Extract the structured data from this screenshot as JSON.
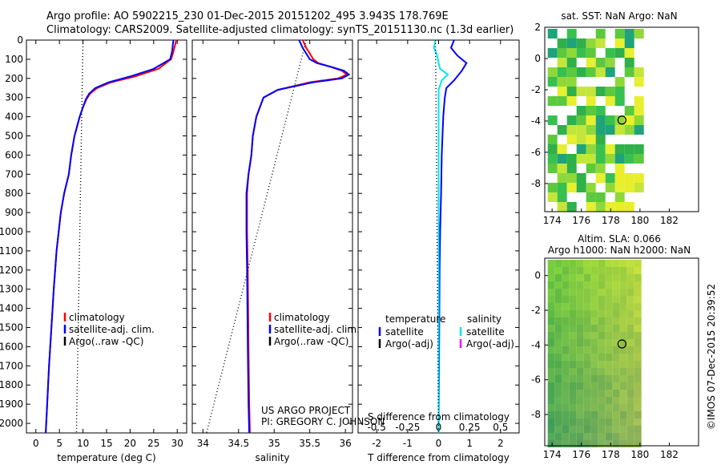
{
  "header": {
    "line1": "Argo profile: AO 5902215_230 01-Dec-2015 20151202_495 3.943S 178.769E",
    "line2": "Climatology: CARS2009. Satellite-adjusted climatology: synTS_20151130.nc (1.3d earlier)"
  },
  "colors": {
    "climatology": "#ff0000",
    "satellite": "#0000ff",
    "argo": "#000000",
    "satellite_s": "#00e5ee",
    "argo_s": "#ff00ff"
  },
  "chart_data": [
    {
      "id": "temperature",
      "type": "line",
      "xlabel": "temperature (deg C)",
      "ylabel": "",
      "xlim": [
        -2,
        32
      ],
      "ylim": [
        2050,
        0
      ],
      "xticks": [
        "0",
        "5",
        "10",
        "15",
        "20",
        "25",
        "30"
      ],
      "xtick_values": [
        0,
        5,
        10,
        15,
        20,
        25,
        30
      ],
      "yticks": [
        "0",
        "100",
        "200",
        "300",
        "400",
        "500",
        "600",
        "700",
        "800",
        "900",
        "1000",
        "1100",
        "1200",
        "1300",
        "1400",
        "1500",
        "1600",
        "1700",
        "1800",
        "1900",
        "2000"
      ],
      "ytick_values": [
        0,
        100,
        200,
        300,
        400,
        500,
        600,
        700,
        800,
        900,
        1000,
        1100,
        1200,
        1300,
        1400,
        1500,
        1600,
        1700,
        1800,
        1900,
        2000
      ],
      "legend": [
        "climatology",
        "satellite-adj. clim.",
        "Argo(..raw -QC)"
      ],
      "series": [
        {
          "name": "climatology",
          "x": [
            29.8,
            29.6,
            29.2,
            28.7,
            26,
            21,
            16,
            13,
            11.5,
            10.7,
            10,
            9.3,
            8.2,
            7.5,
            7,
            6,
            5.3,
            4.4,
            3.8,
            3.3,
            2.8,
            2.4,
            2.2,
            2.1
          ],
          "y": [
            0,
            20,
            60,
            100,
            150,
            190,
            220,
            250,
            280,
            310,
            350,
            400,
            500,
            600,
            700,
            800,
            900,
            1100,
            1300,
            1500,
            1700,
            1900,
            2000,
            2050
          ]
        },
        {
          "name": "satellite-adj. clim.",
          "x": [
            29.2,
            29.1,
            28.9,
            28.5,
            25,
            20,
            15.5,
            12.6,
            11.3,
            10.6,
            10,
            9.3,
            8.2,
            7.5,
            7,
            6,
            5.3,
            4.4,
            3.8,
            3.3,
            2.8,
            2.4,
            2.2,
            2.1
          ],
          "y": [
            0,
            20,
            60,
            100,
            150,
            190,
            220,
            250,
            280,
            310,
            350,
            400,
            500,
            600,
            700,
            800,
            900,
            1100,
            1300,
            1500,
            1700,
            1900,
            2000,
            2050
          ]
        },
        {
          "name": "Argo(..raw -QC)",
          "x": [
            10,
            8.6
          ],
          "y": [
            0,
            2050
          ],
          "style": "dotted"
        }
      ]
    },
    {
      "id": "salinity",
      "type": "line",
      "xlabel": "salinity",
      "xlim": [
        33.85,
        36.1
      ],
      "ylim": [
        2050,
        0
      ],
      "xticks": [
        "34",
        "34.5",
        "35",
        "35.5",
        "36"
      ],
      "xtick_values": [
        34,
        34.5,
        35,
        35.5,
        36
      ],
      "legend": [
        "climatology",
        "satellite-adj. clim.",
        "Argo(..raw -QC)"
      ],
      "annotation_lines": [
        "US ARGO PROJECT",
        "PI: GREGORY C. JOHNSON"
      ],
      "series": [
        {
          "name": "climatology",
          "x": [
            35.4,
            35.45,
            35.5,
            35.55,
            35.62,
            35.8,
            35.95,
            36.02,
            35.9,
            35.5,
            35.05,
            34.85,
            34.75,
            34.7,
            34.68,
            34.64,
            34.62,
            34.62,
            34.62,
            34.63,
            34.64,
            34.65,
            34.66
          ],
          "y": [
            0,
            40,
            70,
            100,
            120,
            140,
            160,
            180,
            200,
            220,
            260,
            300,
            400,
            500,
            600,
            700,
            800,
            900,
            1000,
            1200,
            1600,
            1900,
            2050
          ]
        },
        {
          "name": "satellite-adj. clim.",
          "x": [
            35.35,
            35.4,
            35.45,
            35.5,
            35.6,
            35.8,
            35.98,
            36.05,
            35.95,
            35.55,
            35.05,
            34.85,
            34.75,
            34.7,
            34.68,
            34.64,
            34.61,
            34.61,
            34.61,
            34.62,
            34.63,
            34.64,
            34.65
          ],
          "y": [
            0,
            40,
            70,
            100,
            120,
            140,
            160,
            180,
            200,
            220,
            260,
            300,
            400,
            500,
            600,
            700,
            800,
            900,
            1000,
            1200,
            1600,
            1900,
            2050
          ]
        },
        {
          "name": "Argo(..raw -QC)",
          "x": [
            35.45,
            34.05
          ],
          "y": [
            0,
            2050
          ],
          "style": "dotted"
        }
      ]
    },
    {
      "id": "difference",
      "type": "line",
      "xlabel": "T difference from climatology",
      "x2label": "S difference from climatology",
      "xlim": [
        -2.6,
        2.6
      ],
      "ylim": [
        2050,
        0
      ],
      "xticks": [
        "-2",
        "-1",
        "0",
        "1",
        "2"
      ],
      "xtick_values": [
        -2,
        -1,
        0,
        1,
        2
      ],
      "x2ticks": [
        "-0.5",
        "-0.25",
        "0",
        "0.25",
        "0.5"
      ],
      "x2tick_values": [
        -0.5,
        -0.25,
        0,
        0.25,
        0.5
      ],
      "legend": {
        "temperature": {
          "title": "temperature",
          "items": [
            "satellite",
            "Argo(-adj)"
          ]
        },
        "salinity": {
          "title": "salinity",
          "items": [
            "satellite",
            "Argo(-adj)"
          ]
        }
      },
      "series": [
        {
          "name": "T satellite",
          "x": [
            0.5,
            0.4,
            0.6,
            0.9,
            0.75,
            0.5,
            0.25,
            0.2,
            0.15,
            0.1,
            0.08,
            0.05,
            0.03,
            0.02,
            0.01,
            0
          ],
          "y": [
            0,
            40,
            80,
            120,
            160,
            210,
            250,
            300,
            400,
            600,
            800,
            1000,
            1200,
            1500,
            1800,
            2050
          ]
        },
        {
          "name": "S satellite",
          "x": [
            -0.1,
            -0.15,
            -0.05,
            0,
            0.05,
            0.3,
            0.1,
            0,
            0,
            0,
            0,
            0,
            0,
            0
          ],
          "y": [
            0,
            40,
            80,
            120,
            150,
            180,
            210,
            260,
            300,
            500,
            800,
            1200,
            1700,
            2050
          ]
        },
        {
          "name": "Argo",
          "x": [
            -0.1,
            0
          ],
          "y": [
            0,
            2050
          ],
          "style": "dotted"
        }
      ]
    }
  ],
  "maps": {
    "sst": {
      "title": "sat. SST: NaN Argo: NaN",
      "xlim": [
        173.5,
        184
      ],
      "ylim": [
        -9.8,
        2
      ],
      "xticks": [
        "174",
        "176",
        "178",
        "180",
        "182"
      ],
      "xtick_values": [
        174,
        176,
        178,
        180,
        182
      ],
      "yticks": [
        "2",
        "0",
        "-2",
        "-4",
        "-6",
        "-8"
      ],
      "ytick_values": [
        2,
        0,
        -2,
        -4,
        -6,
        -8
      ],
      "marker": {
        "lon": 178.77,
        "lat": -3.94
      }
    },
    "sla": {
      "title1": "Altim. SLA: 0.066",
      "title2": "Argo h1000: NaN h2000: NaN",
      "xlim": [
        173.5,
        184
      ],
      "ylim": [
        -9.8,
        1
      ],
      "xticks": [
        "174",
        "176",
        "178",
        "180",
        "182"
      ],
      "xtick_values": [
        174,
        176,
        178,
        180,
        182
      ],
      "yticks": [
        "0",
        "-2",
        "-4",
        "-6",
        "-8"
      ],
      "ytick_values": [
        0,
        -2,
        -4,
        -6,
        -8
      ],
      "marker": {
        "lon": 178.77,
        "lat": -3.94
      }
    }
  },
  "watermark": "©IMOS 07-Dec-2015 20:39:52"
}
